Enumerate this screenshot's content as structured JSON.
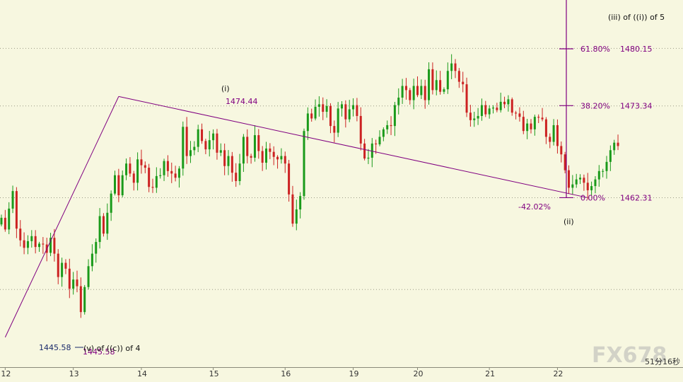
{
  "chart_data": {
    "type": "candlestick",
    "x_tick_labels": [
      "12",
      "13",
      "14",
      "15",
      "16",
      "19",
      "20",
      "21",
      "22"
    ],
    "ylim": [
      1442.0,
      1486.0
    ],
    "gridlines_y": [
      1480.2,
      1473.3,
      1462.3,
      1451.3
    ],
    "grid": "horizontal dotted",
    "colors": {
      "up": "#1a9a1a",
      "down": "#cc2222",
      "annotation": "#800080",
      "background": "#f7f7e0"
    },
    "series": [
      {
        "values": [
          1459.9,
          1458.5,
          1461.0,
          1463.1,
          1458.6,
          1457.2,
          1456.3,
          1457.1,
          1457.7,
          1456.4,
          1456.8,
          1456.7,
          1455.7,
          1457.5,
          1455.6,
          1452.8,
          1454.5,
          1453.8,
          1451.4,
          1452.5,
          1451.7,
          1448.6,
          1451.6,
          1454.1,
          1455.6,
          1457.0,
          1460.1,
          1458.0,
          1460.5,
          1462.8,
          1465.0,
          1462.6,
          1465.0,
          1466.4,
          1465.2,
          1464.1,
          1466.9,
          1466.2,
          1465.9,
          1463.6,
          1463.5,
          1464.9,
          1465.0,
          1466.7,
          1465.5,
          1465.2,
          1464.7,
          1465.8,
          1470.8,
          1467.3,
          1468.0,
          1468.4,
          1470.5,
          1469.1,
          1468.1,
          1469.2,
          1470.0,
          1467.7,
          1468.0,
          1466.1,
          1467.3,
          1465.3,
          1464.3,
          1466.4,
          1469.6,
          1467.3,
          1467.1,
          1469.8,
          1467.9,
          1466.5,
          1468.2,
          1467.8,
          1467.2,
          1466.9,
          1467.3,
          1466.4,
          1462.7,
          1459.2,
          1460.9,
          1462.5,
          1470.3,
          1472.4,
          1471.8,
          1473.2,
          1473.5,
          1472.6,
          1473.3,
          1470.9,
          1470.1,
          1473.0,
          1473.5,
          1471.7,
          1472.9,
          1473.4,
          1472.1,
          1468.8,
          1467.0,
          1467.1,
          1468.8,
          1468.7,
          1469.6,
          1470.5,
          1471.0,
          1470.9,
          1473.4,
          1474.3,
          1475.7,
          1475.2,
          1474.0,
          1475.7,
          1474.6,
          1475.7,
          1474.0,
          1477.7,
          1475.2,
          1476.4,
          1475.0,
          1475.3,
          1477.5,
          1478.4,
          1477.5,
          1476.2,
          1475.9,
          1472.5,
          1471.6,
          1471.8,
          1472.1,
          1473.4,
          1472.3,
          1473.0,
          1473.1,
          1472.8,
          1473.8,
          1473.5,
          1474.1,
          1472.5,
          1472.4,
          1472.0,
          1470.3,
          1471.2,
          1470.5,
          1472.0,
          1471.9,
          1471.7,
          1469.6,
          1469.0,
          1471.0,
          1468.5,
          1467.5,
          1465.6,
          1463.5,
          1463.9,
          1464.5,
          1464.7,
          1464.1,
          1463.2,
          1463.7,
          1464.5,
          1465.5,
          1465.5,
          1466.6,
          1468.0,
          1468.9,
          1468.5
        ]
      }
    ],
    "fibonacci": [
      {
        "pct": "61.80%",
        "value": "1480.15"
      },
      {
        "pct": "38.20%",
        "value": "1473.34"
      },
      {
        "pct": "0.00%",
        "value": "1462.31"
      }
    ],
    "wave_lines": [
      {
        "from": [
          1,
          1445.58
        ],
        "to": [
          31,
          1474.44
        ]
      },
      {
        "from": [
          31,
          1474.44
        ],
        "to": [
          155,
          1462.31
        ]
      }
    ],
    "annotations": [
      {
        "text": "(iii) of ((i)) of 5"
      },
      {
        "text": "(i)"
      },
      {
        "text": "1474.44"
      },
      {
        "text": "(ii)"
      },
      {
        "text": "-42.02%"
      },
      {
        "text": "1445.58"
      },
      {
        "text": "1445.58"
      },
      {
        "text": "(v) of ((c)) of 4"
      }
    ],
    "watermark": "FX678",
    "footer_text": "51分16秒"
  }
}
